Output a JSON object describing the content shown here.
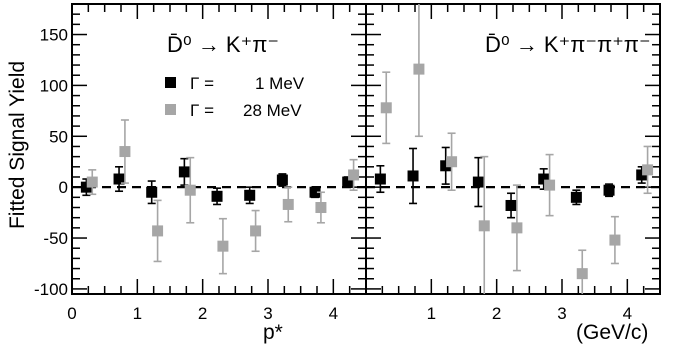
{
  "chart_data": {
    "type": "scatter",
    "ylabel": "Fitted Signal Yield",
    "xlabel_left": "p*",
    "xlabel_right": "(GeV/c)",
    "ylim": [
      -105,
      180
    ],
    "xlim": [
      0,
      4.5
    ],
    "yticks": [
      -100,
      -50,
      0,
      50,
      100,
      150
    ],
    "xticks_major": [
      0,
      1,
      2,
      3,
      4
    ],
    "legend": {
      "placement": "top-left of left panel",
      "entries": [
        {
          "key": "g1",
          "prefix": "Γ =",
          "value": "1 MeV",
          "color": "#000000"
        },
        {
          "key": "g28",
          "prefix": "Γ =",
          "value": "28 MeV",
          "color": "#a6a6a6"
        }
      ]
    },
    "panels": [
      {
        "id": "left",
        "title": "D̄⁰ → K⁺π⁻",
        "series": [
          {
            "key": "g1",
            "color": "#000000",
            "offset": -0.03,
            "x": [
              0.25,
              0.75,
              1.25,
              1.75,
              2.25,
              2.75,
              3.25,
              3.75,
              4.25
            ],
            "y": [
              0,
              8,
              -5,
              15,
              -9,
              -8,
              7,
              -5,
              5
            ],
            "err": [
              8,
              12,
              11,
              13,
              8,
              8,
              6,
              5,
              5
            ]
          },
          {
            "key": "g28",
            "color": "#a6a6a6",
            "offset": 0.06,
            "x": [
              0.25,
              0.75,
              1.25,
              1.75,
              2.25,
              2.75,
              3.25,
              3.75,
              4.25
            ],
            "y": [
              5,
              35,
              -43,
              -3,
              -58,
              -43,
              -17,
              -20,
              12
            ],
            "err": [
              12,
              31,
              30,
              32,
              27,
              20,
              17,
              15,
              15
            ]
          }
        ]
      },
      {
        "id": "right",
        "title": "D̄⁰ → K⁺π⁻π⁺π⁻",
        "series": [
          {
            "key": "g1",
            "color": "#000000",
            "offset": -0.03,
            "x": [
              0.25,
              0.75,
              1.25,
              1.75,
              2.25,
              2.75,
              3.25,
              3.75,
              4.25
            ],
            "y": [
              8,
              11,
              21,
              5,
              -18,
              8,
              -10,
              -3,
              12
            ],
            "err": [
              13,
              27,
              18,
              24,
              12,
              10,
              7,
              6,
              8
            ]
          },
          {
            "key": "g28",
            "color": "#a6a6a6",
            "offset": 0.06,
            "x": [
              0.25,
              0.75,
              1.25,
              1.75,
              2.25,
              2.75,
              3.25,
              3.75,
              4.25
            ],
            "y": [
              78,
              116,
              25,
              -38,
              -40,
              2,
              -85,
              -52,
              17
            ],
            "err": [
              35,
              66,
              28,
              68,
              42,
              30,
              23,
              23,
              23
            ]
          }
        ]
      }
    ]
  }
}
